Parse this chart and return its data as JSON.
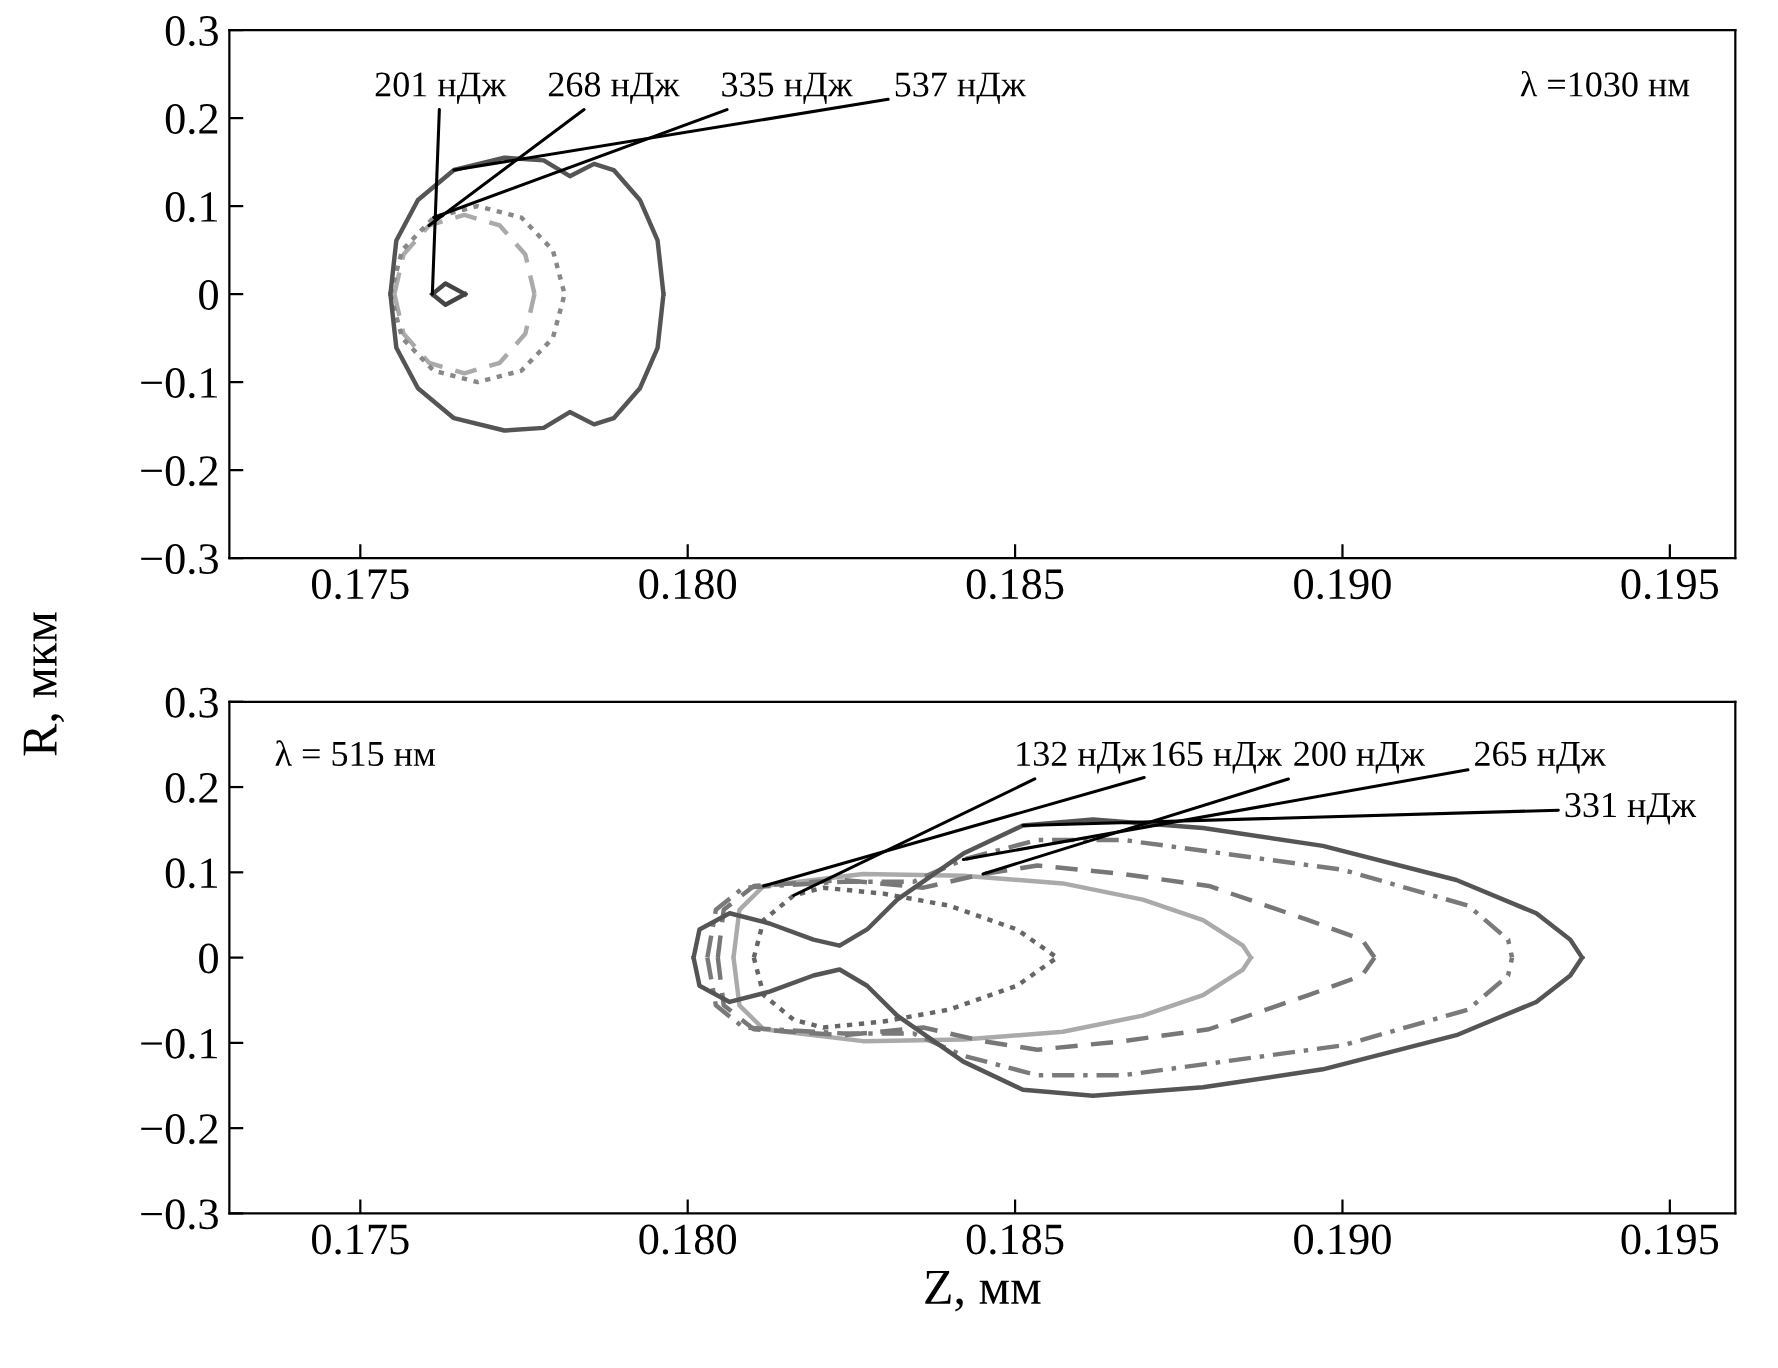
{
  "chart_data": [
    {
      "type": "line",
      "ylabel": "R, мкм",
      "xlim": [
        0.173,
        0.196
      ],
      "ylim": [
        -0.3,
        0.3
      ],
      "xticks": [
        {
          "value": 0.175,
          "label": "0.175"
        },
        {
          "value": 0.18,
          "label": "0.180"
        },
        {
          "value": 0.185,
          "label": "0.185"
        },
        {
          "value": 0.19,
          "label": "0.190"
        },
        {
          "value": 0.195,
          "label": "0.195"
        }
      ],
      "yticks": [
        {
          "value": -0.3,
          "label": "−0.3"
        },
        {
          "value": -0.2,
          "label": "−0.2"
        },
        {
          "value": -0.1,
          "label": "−0.1"
        },
        0,
        {
          "value": 0.1,
          "label": "0.1"
        },
        {
          "value": 0.2,
          "label": "0.2"
        },
        {
          "value": 0.3,
          "label": "0.3"
        }
      ],
      "grid": false,
      "legend": false,
      "marker": "none",
      "annotations": [
        "λ =1030 нм"
      ],
      "series": [
        {
          "name": "201 нДж",
          "color": "#444444",
          "line_style": "solid",
          "x": [
            0.1761,
            0.1763,
            0.1766,
            null,
            0.1761,
            0.1763,
            0.1766
          ],
          "values": [
            0,
            0.012,
            0,
            null,
            0,
            -0.012,
            0
          ]
        },
        {
          "name": "268 нДж",
          "color": "#aaaaaa",
          "line_style": "dashed",
          "x": [
            0.17552,
            0.17566,
            0.17605,
            0.17659,
            0.17713,
            0.17752,
            0.17766,
            null,
            0.17552,
            0.17566,
            0.17605,
            0.17659,
            0.17713,
            0.17752,
            0.17766
          ],
          "values": [
            0,
            0.045,
            0.078,
            0.09,
            0.078,
            0.045,
            0,
            null,
            0,
            -0.045,
            -0.078,
            -0.09,
            -0.078,
            -0.045,
            0
          ]
        },
        {
          "name": "335 нДж",
          "color": "#888888",
          "line_style": "dotted",
          "x": [
            0.17546,
            0.17564,
            0.17612,
            0.17679,
            0.17746,
            0.17794,
            0.17812,
            null,
            0.17546,
            0.17564,
            0.17612,
            0.17679,
            0.17746,
            0.17794,
            0.17812
          ],
          "values": [
            0,
            0.05,
            0.087,
            0.1,
            0.087,
            0.05,
            0,
            null,
            0,
            -0.05,
            -0.087,
            -0.1,
            -0.087,
            -0.05,
            0
          ]
        },
        {
          "name": "537 нДж",
          "color": "#555555",
          "line_style": "solid",
          "x": [
            0.17546,
            0.17555,
            0.17588,
            0.17643,
            0.1772,
            0.1778,
            0.1782,
            0.17857,
            0.17887,
            0.17927,
            0.17954,
            0.17963,
            null,
            0.17546,
            0.17555,
            0.17588,
            0.17643,
            0.1772,
            0.1778,
            0.1782,
            0.17857,
            0.17887,
            0.17927,
            0.17954,
            0.17963
          ],
          "values": [
            0,
            0.061,
            0.107,
            0.141,
            0.155,
            0.152,
            0.134,
            0.148,
            0.141,
            0.107,
            0.061,
            0,
            null,
            0,
            -0.061,
            -0.107,
            -0.141,
            -0.155,
            -0.152,
            -0.134,
            -0.148,
            -0.141,
            -0.107,
            -0.061,
            0
          ]
        }
      ]
    },
    {
      "type": "line",
      "xlabel": "Z, мм",
      "xlim": [
        0.173,
        0.196
      ],
      "ylim": [
        -0.3,
        0.3
      ],
      "xticks": [
        {
          "value": 0.175,
          "label": "0.175"
        },
        {
          "value": 0.18,
          "label": "0.180"
        },
        {
          "value": 0.185,
          "label": "0.185"
        },
        {
          "value": 0.19,
          "label": "0.190"
        },
        {
          "value": 0.195,
          "label": "0.195"
        }
      ],
      "yticks": [
        {
          "value": -0.3,
          "label": "−0.3"
        },
        {
          "value": -0.2,
          "label": "−0.2"
        },
        {
          "value": -0.1,
          "label": "−0.1"
        },
        0,
        {
          "value": 0.1,
          "label": "0.1"
        },
        {
          "value": 0.2,
          "label": "0.2"
        },
        {
          "value": 0.3,
          "label": "0.3"
        }
      ],
      "grid": false,
      "legend": false,
      "marker": "none",
      "annotations": [
        "λ = 515 нм"
      ],
      "series": [
        {
          "name": "132 нДж",
          "color": "#666666",
          "line_style": "dotted",
          "x": [
            0.18101,
            0.18116,
            0.18162,
            0.18207,
            0.18299,
            0.18399,
            0.18503,
            0.18564,
            null,
            0.18101,
            0.18116,
            0.18162,
            0.18207,
            0.18299,
            0.18399,
            0.18503,
            0.18564
          ],
          "values": [
            0,
            0.044,
            0.073,
            0.082,
            0.075,
            0.061,
            0.033,
            0,
            null,
            0,
            -0.044,
            -0.073,
            -0.082,
            -0.075,
            -0.061,
            -0.033,
            0
          ]
        },
        {
          "name": "165 нДж",
          "color": "#aaaaaa",
          "line_style": "solid",
          "x": [
            0.1807,
            0.18079,
            0.18116,
            0.18268,
            0.18421,
            0.18573,
            0.18695,
            0.18787,
            0.18848,
            0.1886,
            null,
            0.1807,
            0.18079,
            0.18116,
            0.18268,
            0.18421,
            0.18573,
            0.18695,
            0.18787,
            0.18848,
            0.1886
          ],
          "values": [
            0,
            0.056,
            0.084,
            0.098,
            0.096,
            0.087,
            0.068,
            0.044,
            0.014,
            0,
            null,
            0,
            -0.056,
            -0.084,
            -0.098,
            -0.096,
            -0.087,
            -0.068,
            -0.044,
            -0.014,
            0
          ]
        },
        {
          "name": "200 нДж",
          "color": "#777777",
          "line_style": "dashed",
          "x": [
            0.18046,
            0.18055,
            0.18101,
            0.18238,
            0.1836,
            0.18451,
            0.18534,
            0.18665,
            0.18796,
            0.18948,
            0.1903,
            0.19049,
            null,
            0.18046,
            0.18055,
            0.18101,
            0.18238,
            0.1836,
            0.18451,
            0.18534,
            0.18665,
            0.18796,
            0.18948,
            0.1903,
            0.19049
          ],
          "values": [
            0,
            0.056,
            0.084,
            0.091,
            0.082,
            0.098,
            0.108,
            0.098,
            0.084,
            0.044,
            0.021,
            0,
            null,
            0,
            -0.056,
            -0.084,
            -0.091,
            -0.082,
            -0.098,
            -0.108,
            -0.098,
            -0.084,
            -0.044,
            -0.021,
            0
          ]
        },
        {
          "name": "265 нДж",
          "color": "#7a7a7a",
          "line_style": "dashdot",
          "x": [
            0.1803,
            0.18043,
            0.18085,
            0.18238,
            0.18345,
            0.18421,
            0.18534,
            0.18665,
            0.19,
            0.19192,
            0.19253,
            0.19259,
            null,
            0.1803,
            0.18043,
            0.18085,
            0.18238,
            0.18345,
            0.18421,
            0.18534,
            0.18665,
            0.19,
            0.19192,
            0.19253,
            0.19259
          ],
          "values": [
            0,
            0.056,
            0.082,
            0.089,
            0.089,
            0.115,
            0.138,
            0.138,
            0.103,
            0.061,
            0.021,
            0,
            null,
            0,
            -0.056,
            -0.082,
            -0.089,
            -0.089,
            -0.115,
            -0.138,
            -0.138,
            -0.103,
            -0.061,
            -0.021,
            0
          ]
        },
        {
          "name": "331 нДж",
          "color": "#555555",
          "line_style": "solid",
          "x": [
            0.18009,
            0.18018,
            0.18064,
            0.18125,
            0.18192,
            0.18232,
            0.18274,
            0.1832,
            0.18421,
            0.18512,
            0.18619,
            0.18787,
            0.1897,
            0.19174,
            0.19296,
            0.19348,
            0.19366,
            null,
            0.18009,
            0.18018,
            0.18064,
            0.18125,
            0.18192,
            0.18232,
            0.18274,
            0.1832,
            0.18421,
            0.18512,
            0.18619,
            0.18787,
            0.1897,
            0.19174,
            0.19296,
            0.19348,
            0.19366
          ],
          "values": [
            0,
            0.033,
            0.052,
            0.04,
            0.021,
            0.014,
            0.033,
            0.068,
            0.122,
            0.155,
            0.162,
            0.152,
            0.131,
            0.091,
            0.052,
            0.021,
            0,
            null,
            0,
            -0.033,
            -0.052,
            -0.04,
            -0.021,
            -0.014,
            -0.033,
            -0.068,
            -0.122,
            -0.155,
            -0.162,
            -0.152,
            -0.131,
            -0.091,
            -0.052,
            -0.021,
            0
          ]
        }
      ]
    }
  ]
}
